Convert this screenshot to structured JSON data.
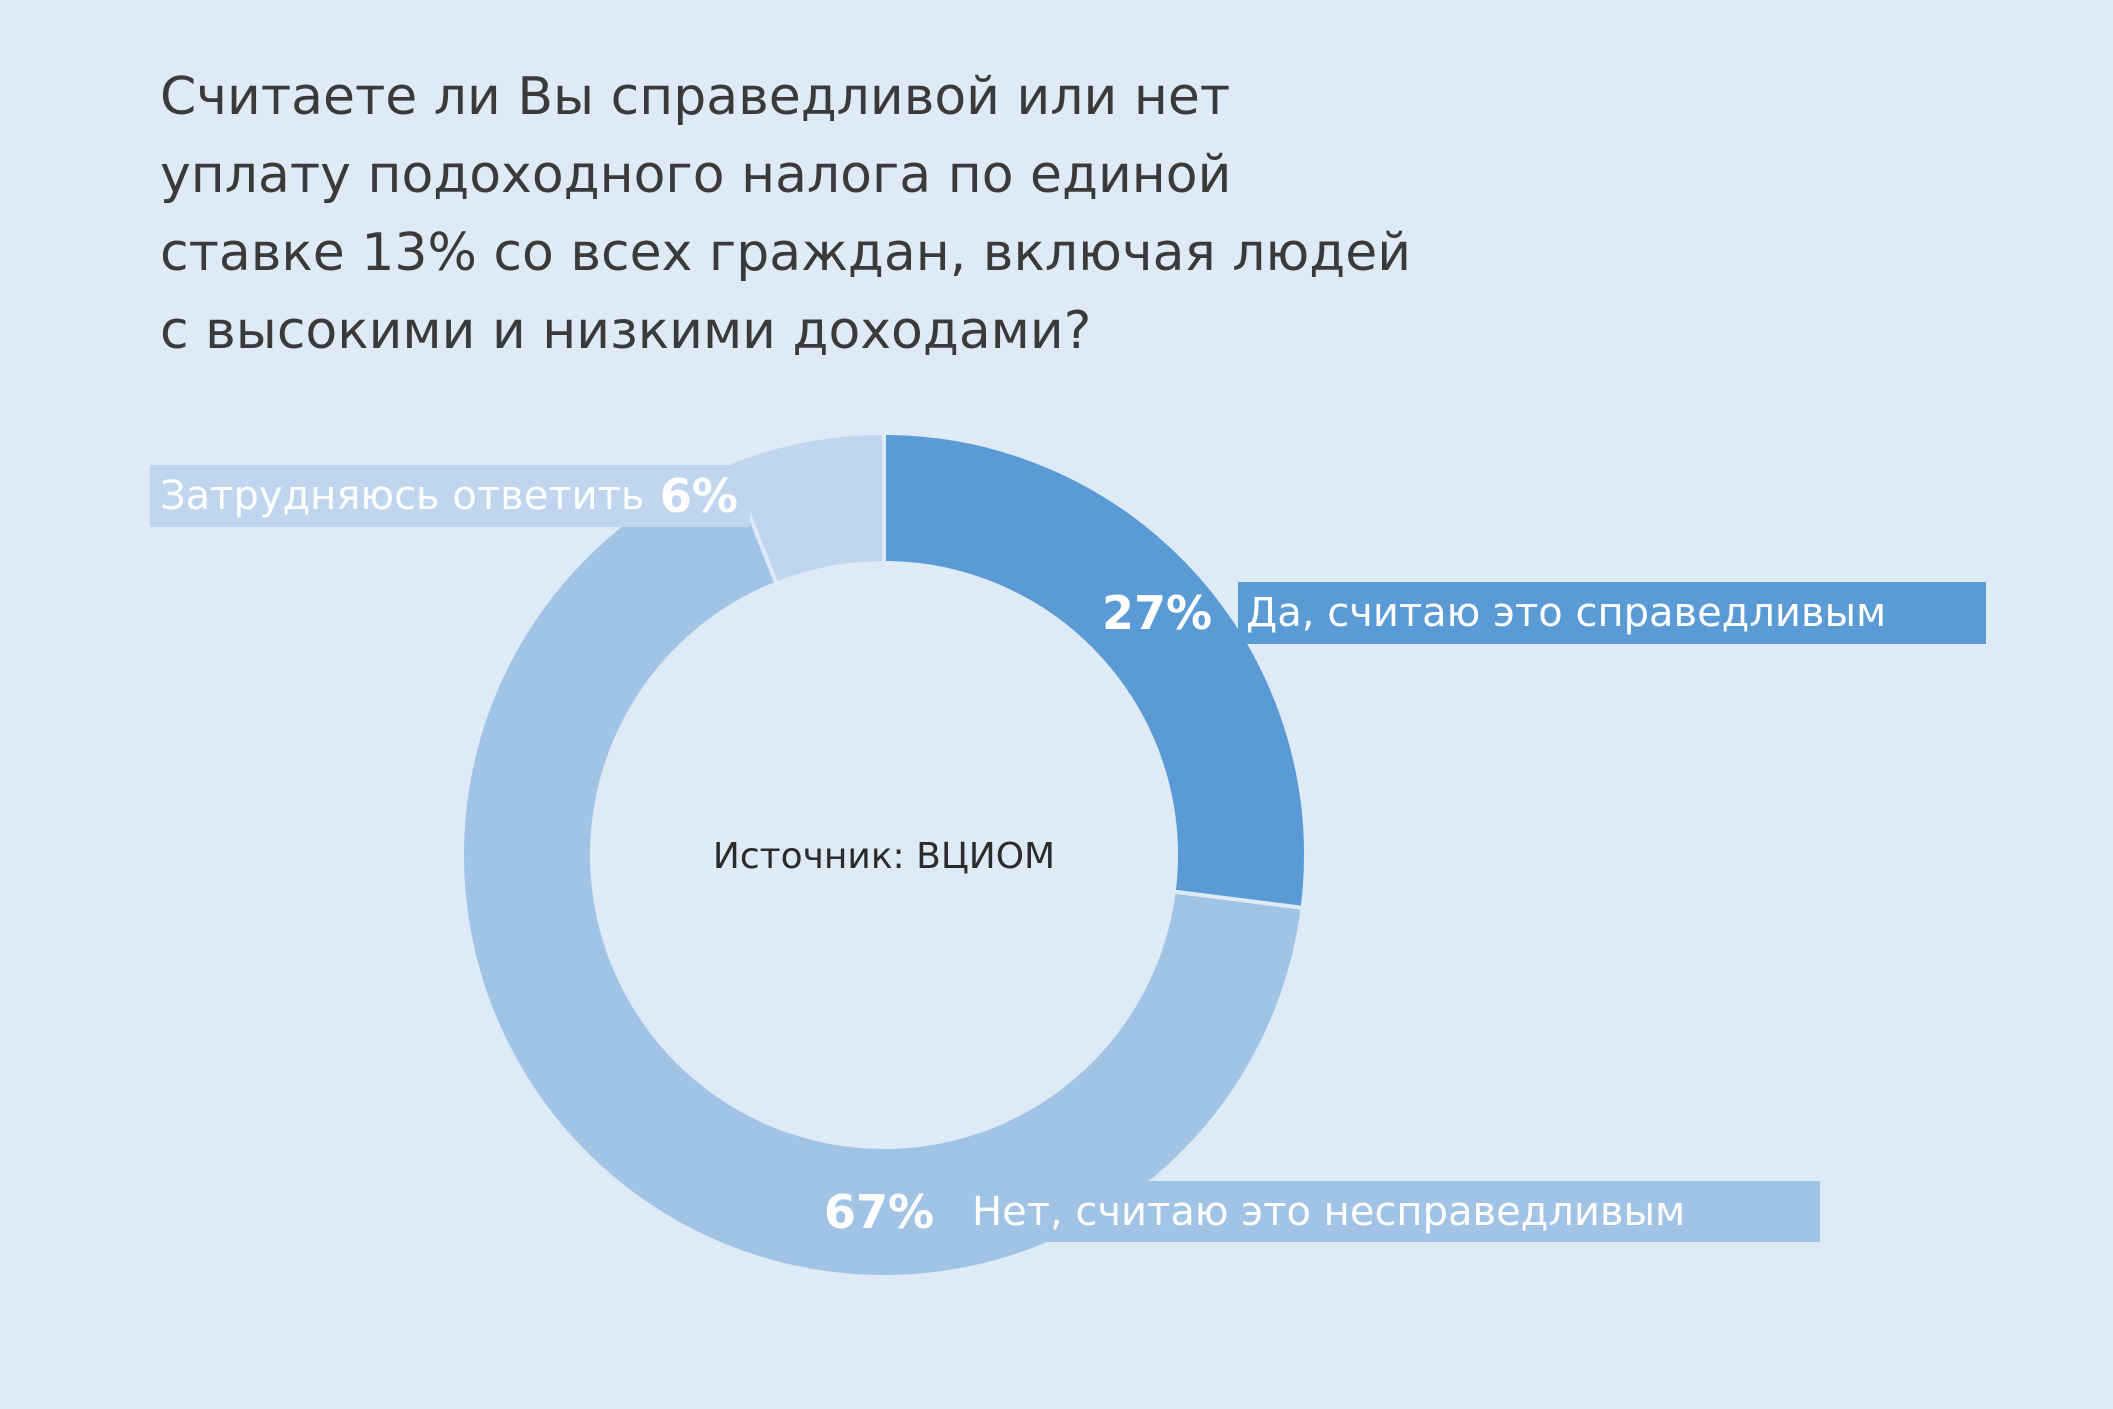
{
  "title": "Считаете ли Вы справедливой или нет уплату подоходного налога по единой ставке 13% со всех граждан, включая людей с высокими и низкими доходами?",
  "source": "Источник: ВЦИОМ",
  "chart_data": {
    "type": "pie",
    "title": "Считаете ли Вы справедливой или нет уплату подоходного налога по единой ставке 13% со всех граждан, включая людей с высокими и низкими доходами?",
    "donut": true,
    "start_angle_deg": 0,
    "direction": "clockwise",
    "slices": [
      {
        "label": "Да, считаю это справедливым",
        "value": 27,
        "value_label": "27%",
        "color": "#5b9bd5"
      },
      {
        "label": "Нет, считаю это несправедливым",
        "value": 67,
        "value_label": "67%",
        "color": "#a0c3e6"
      },
      {
        "label": "Затрудняюсь ответить",
        "value": 6,
        "value_label": "6%",
        "color": "#bfd6ee"
      }
    ],
    "center_text": "Источник: ВЦИОМ",
    "legend": "none",
    "grid": false
  },
  "colors": {
    "background": "#deeaf6",
    "text": "#3a3a3a",
    "label_text": "#ffffff"
  }
}
